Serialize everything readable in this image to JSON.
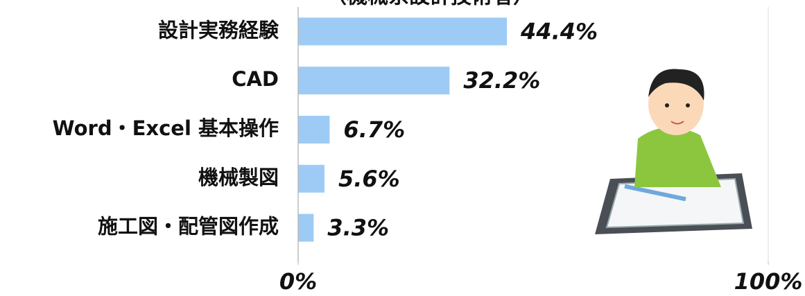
{
  "chart_data": {
    "type": "bar",
    "orientation": "horizontal",
    "subtitle": "（機械系設計技術者）",
    "categories": [
      "設計実務経験",
      "CAD",
      "Word・Excel 基本操作",
      "機械製図",
      "施工図・配管図作成"
    ],
    "values": [
      44.4,
      32.2,
      6.7,
      5.6,
      3.3
    ],
    "value_labels": [
      "44.4%",
      "32.2%",
      "6.7%",
      "5.6%",
      "3.3%"
    ],
    "color": "#9dcbf6",
    "xlim": [
      0,
      100
    ],
    "xticks": [
      {
        "value": 0,
        "label": "0%"
      },
      {
        "value": 100,
        "label": "100%"
      }
    ]
  }
}
